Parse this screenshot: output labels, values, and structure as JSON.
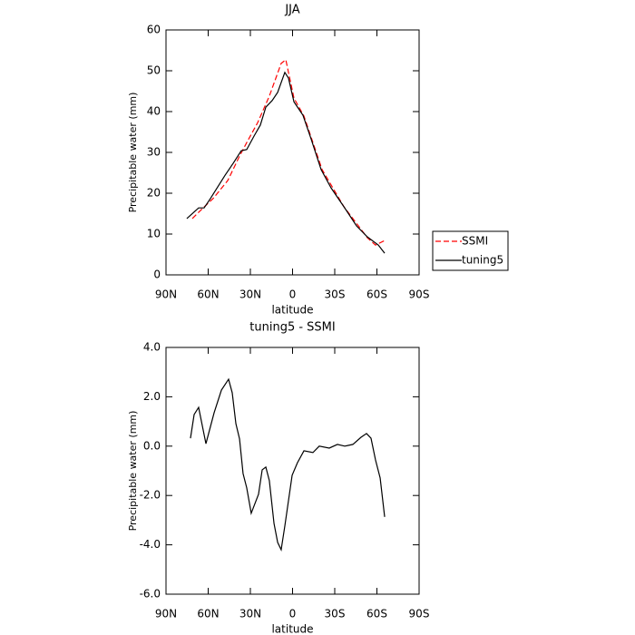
{
  "chart_data": [
    {
      "type": "line",
      "title": "JJA",
      "xlabel": "latitude",
      "ylabel": "Precipitable water  (mm)",
      "xlim": [
        90,
        -90
      ],
      "xticks": [
        {
          "value": 90,
          "label": "90N"
        },
        {
          "value": 60,
          "label": "60N"
        },
        {
          "value": 30,
          "label": "30N"
        },
        0,
        {
          "value": -30,
          "label": "30S"
        },
        {
          "value": -60,
          "label": "60S"
        },
        {
          "value": -90,
          "label": "90S"
        }
      ],
      "ylim": [
        0,
        60
      ],
      "yticks": [
        0,
        10,
        20,
        30,
        40,
        50,
        60
      ],
      "legend": "right",
      "series": [
        {
          "name": "SSMI",
          "color": "#ff0000",
          "style": "dashed",
          "x": [
            71.3,
            64.2,
            56.5,
            46.1,
            37.7,
            32.6,
            24.8,
            16.5,
            8.1,
            4.8,
            -1,
            -8.1,
            -21,
            -36.5,
            -53.2,
            -59,
            -65.5
          ],
          "values": [
            13.8,
            16.2,
            18.7,
            23.1,
            29.1,
            32.4,
            37.3,
            43.8,
            51.8,
            52.7,
            43.3,
            38.9,
            25.8,
            16.7,
            9.1,
            7.3,
            8.4
          ]
        },
        {
          "name": "tuning5",
          "color": "#000000",
          "style": "solid",
          "x": [
            75.2,
            66.8,
            62.9,
            58.4,
            48,
            42.3,
            36.5,
            32.6,
            27.4,
            22.9,
            19,
            14.5,
            10.6,
            5.5,
            2.9,
            -1,
            -7.4,
            -13.2,
            -20.3,
            -27.4,
            -36.5,
            -45.5,
            -53.2,
            -61,
            -65.5
          ],
          "values": [
            13.8,
            16.4,
            16.4,
            18.7,
            24.4,
            27.3,
            30.4,
            30.7,
            34,
            36.7,
            41.1,
            42.7,
            44.7,
            49.6,
            48.2,
            42.4,
            39.1,
            33.3,
            25.8,
            21.3,
            16.7,
            12,
            9.3,
            7.3,
            5.3
          ]
        }
      ]
    },
    {
      "type": "line",
      "title": "tuning5 - SSMI",
      "xlabel": "latitude",
      "ylabel": "Precipitable water  (mm)",
      "xlim": [
        90,
        -90
      ],
      "xticks": [
        {
          "value": 90,
          "label": "90N"
        },
        {
          "value": 60,
          "label": "60N"
        },
        {
          "value": 30,
          "label": "30N"
        },
        0,
        {
          "value": -30,
          "label": "30S"
        },
        {
          "value": -60,
          "label": "60S"
        },
        {
          "value": -90,
          "label": "90S"
        }
      ],
      "ylim": [
        -6,
        4
      ],
      "yticks": [
        {
          "value": -6,
          "label": "-6.0"
        },
        {
          "value": -4,
          "label": "-4.0"
        },
        {
          "value": -2,
          "label": "-2.0"
        },
        {
          "value": 0,
          "label": "0.0"
        },
        {
          "value": 2,
          "label": "2.0"
        },
        {
          "value": 4,
          "label": "4.0"
        }
      ],
      "series": [
        {
          "color": "#000000",
          "style": "solid",
          "x": [
            72.6,
            70,
            66.8,
            61.6,
            55.8,
            50.6,
            45.5,
            42.9,
            40.3,
            37.7,
            35.2,
            32.6,
            29.4,
            24.2,
            21.6,
            19,
            16.5,
            13.2,
            10.6,
            8.1,
            5.5,
            0.3,
            -3.5,
            -8.1,
            -14.5,
            -19,
            -26.1,
            -31.9,
            -37.1,
            -42.9,
            -48.7,
            -52.6,
            -55.8,
            -59,
            -62.3,
            -65.5
          ],
          "values": [
            0.32,
            1.28,
            1.57,
            0.1,
            1.35,
            2.27,
            2.71,
            2.16,
            0.91,
            0.29,
            -1.11,
            -1.69,
            -2.72,
            -1.95,
            -0.96,
            -0.85,
            -1.4,
            -3.13,
            -3.9,
            -4.2,
            -3.24,
            -1.18,
            -0.67,
            -0.19,
            -0.26,
            0,
            -0.08,
            0.07,
            0,
            0.07,
            0.36,
            0.51,
            0.32,
            -0.56,
            -1.29,
            -2.87
          ]
        }
      ]
    }
  ]
}
